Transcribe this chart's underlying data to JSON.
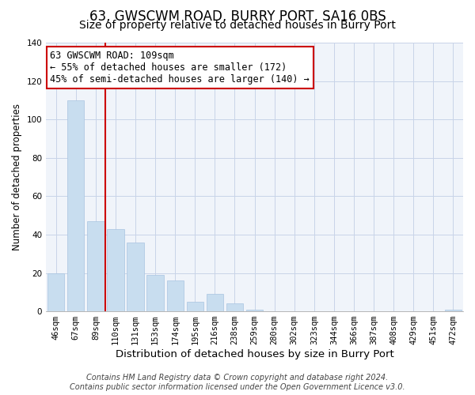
{
  "title": "63, GWSCWM ROAD, BURRY PORT, SA16 0BS",
  "subtitle": "Size of property relative to detached houses in Burry Port",
  "xlabel": "Distribution of detached houses by size in Burry Port",
  "ylabel": "Number of detached properties",
  "bar_color": "#c8ddef",
  "bar_edge_color": "#a8c4e0",
  "categories": [
    "46sqm",
    "67sqm",
    "89sqm",
    "110sqm",
    "131sqm",
    "153sqm",
    "174sqm",
    "195sqm",
    "216sqm",
    "238sqm",
    "259sqm",
    "280sqm",
    "302sqm",
    "323sqm",
    "344sqm",
    "366sqm",
    "387sqm",
    "408sqm",
    "429sqm",
    "451sqm",
    "472sqm"
  ],
  "values": [
    20,
    110,
    47,
    43,
    36,
    19,
    16,
    5,
    9,
    4,
    1,
    0,
    0,
    0,
    0,
    0,
    0,
    0,
    0,
    0,
    1
  ],
  "ylim": [
    0,
    140
  ],
  "yticks": [
    0,
    20,
    40,
    60,
    80,
    100,
    120,
    140
  ],
  "vline_index": 2.5,
  "vline_color": "#cc0000",
  "annotation_title": "63 GWSCWM ROAD: 109sqm",
  "annotation_line1": "← 55% of detached houses are smaller (172)",
  "annotation_line2": "45% of semi-detached houses are larger (140) →",
  "annotation_box_color": "#ffffff",
  "annotation_box_edge": "#cc0000",
  "footer_line1": "Contains HM Land Registry data © Crown copyright and database right 2024.",
  "footer_line2": "Contains public sector information licensed under the Open Government Licence v3.0.",
  "title_fontsize": 12,
  "subtitle_fontsize": 10,
  "xlabel_fontsize": 9.5,
  "ylabel_fontsize": 8.5,
  "tick_fontsize": 7.5,
  "footer_fontsize": 7
}
